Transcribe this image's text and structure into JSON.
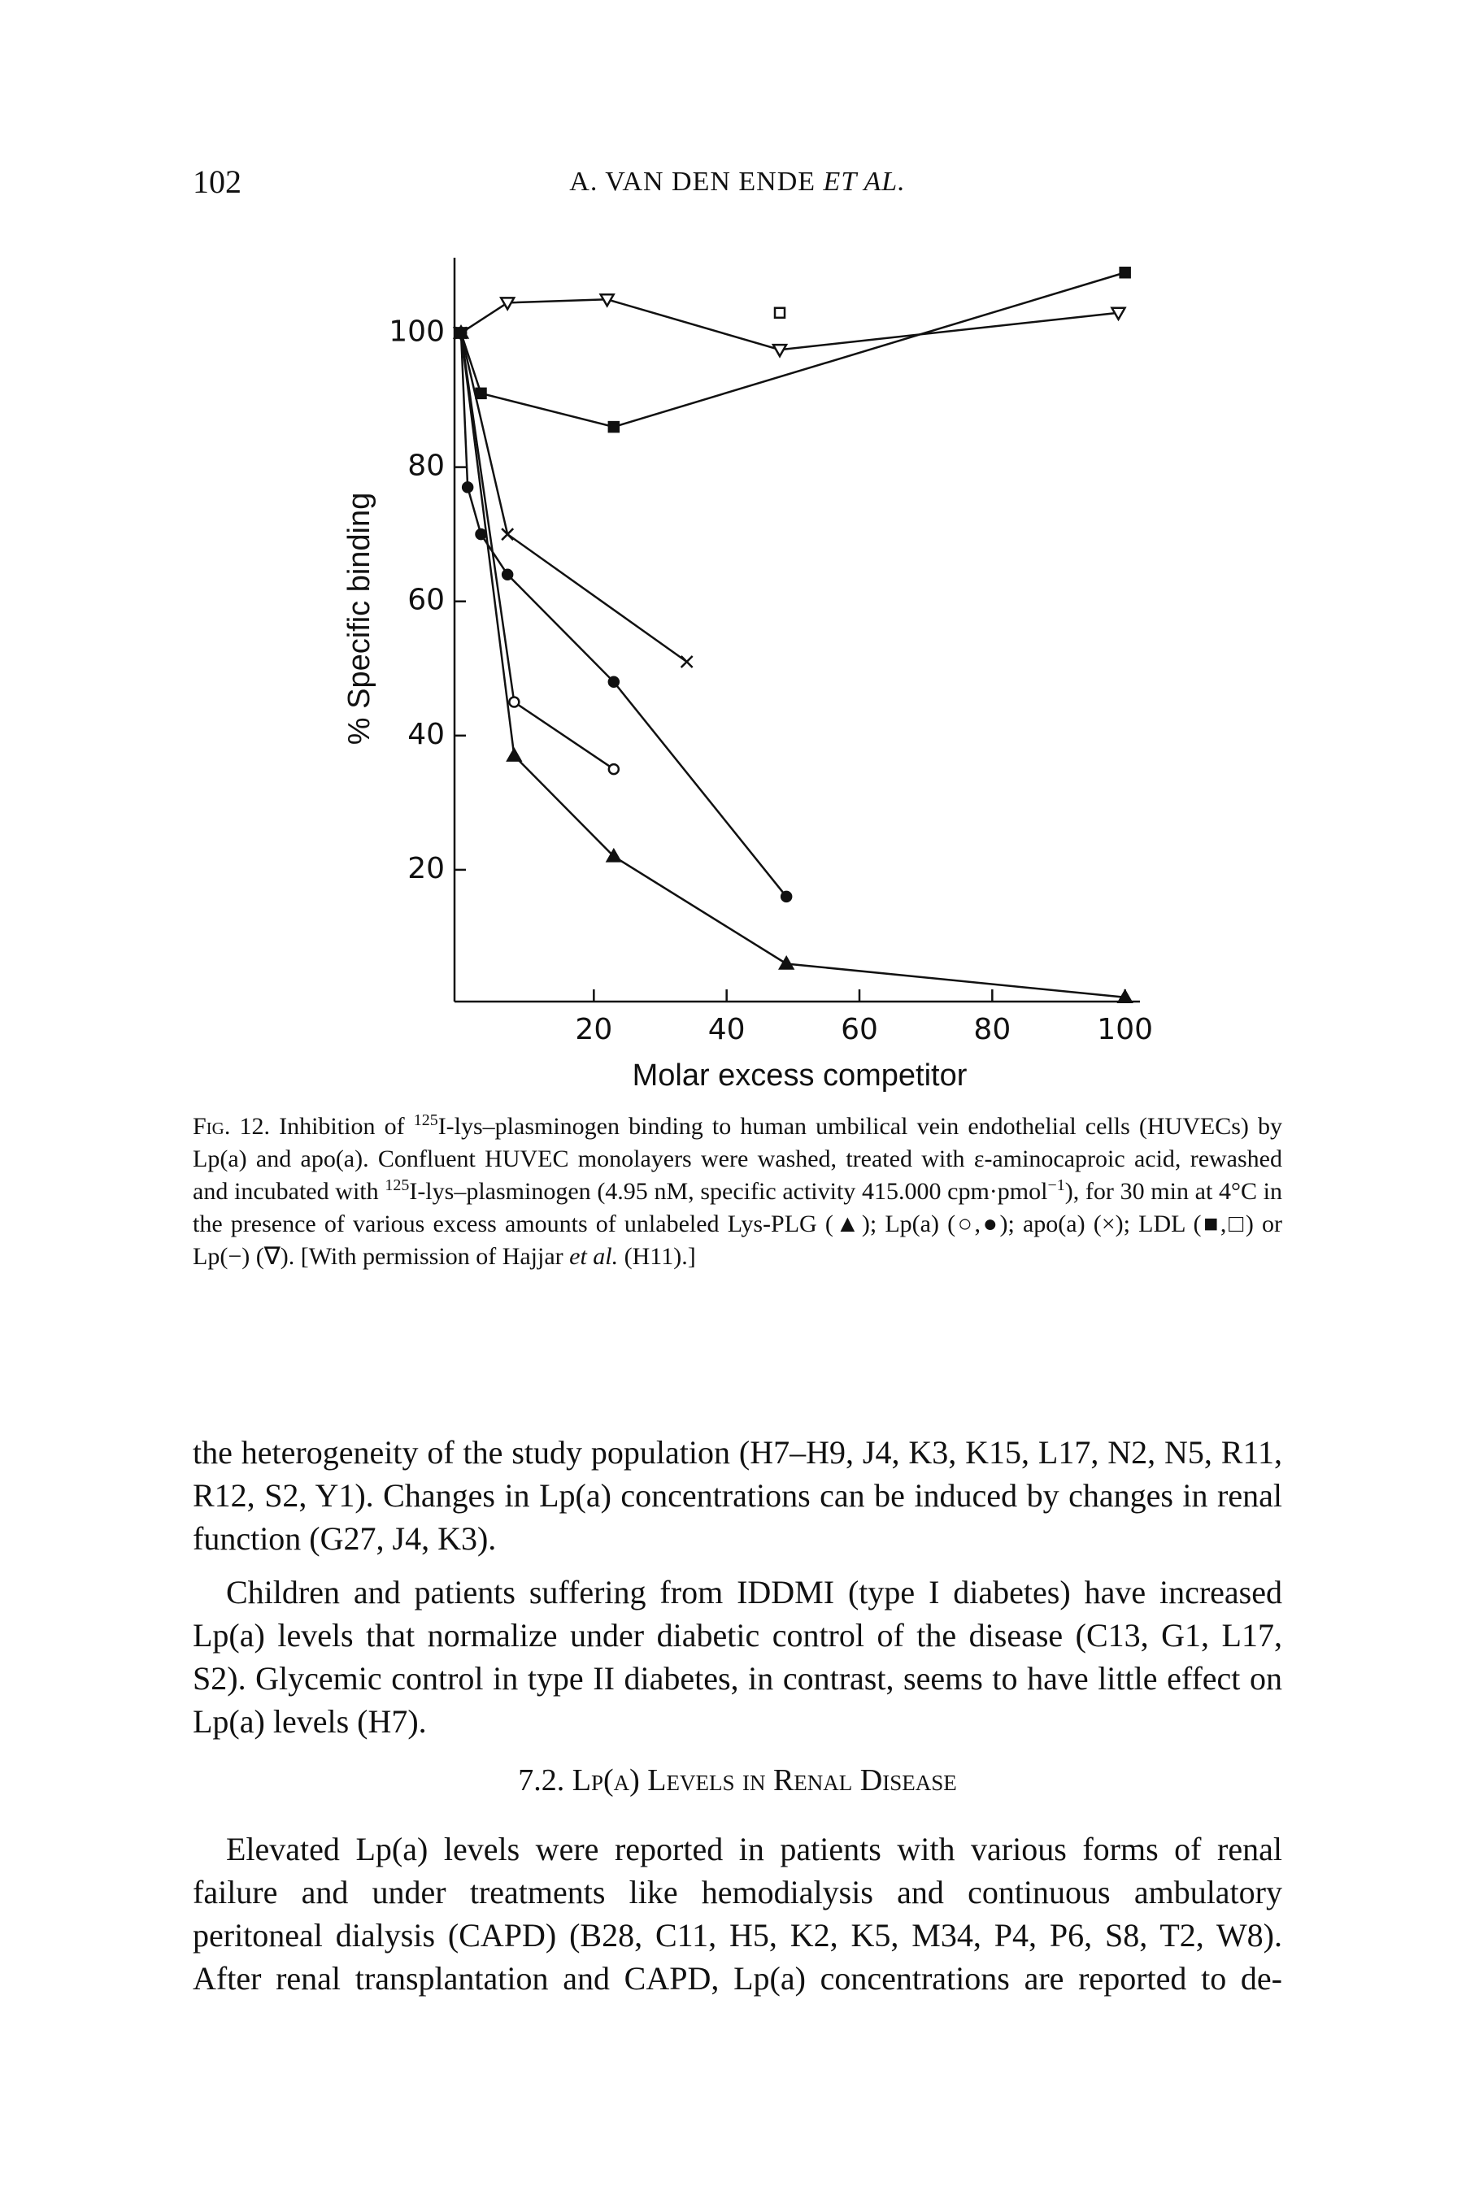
{
  "header": {
    "page_number": "102",
    "author": "A. VAN DEN ENDE",
    "author_suffix": "ET AL."
  },
  "chart_data": {
    "type": "line",
    "xlabel": "Molar excess competitor",
    "ylabel": "% Specific binding",
    "xlim": [
      0,
      102
    ],
    "ylim": [
      0,
      110
    ],
    "xticks": [
      20,
      40,
      60,
      80,
      100
    ],
    "yticks": [
      20,
      40,
      60,
      80,
      100
    ],
    "grid": false,
    "series": [
      {
        "marker": "square-filled",
        "color": "#111111",
        "x": [
          0,
          3,
          23,
          100
        ],
        "values": [
          100,
          91,
          86,
          109
        ]
      },
      {
        "marker": "triangle-open-down",
        "color": "#111111",
        "x": [
          0,
          7,
          22,
          48,
          99
        ],
        "values": [
          100,
          104.5,
          105,
          97.5,
          103
        ]
      },
      {
        "marker": "square-open",
        "color": "#111111",
        "line": false,
        "x": [
          48
        ],
        "values": [
          103
        ]
      },
      {
        "marker": "cross",
        "color": "#111111",
        "x": [
          0,
          7,
          34
        ],
        "values": [
          100,
          70,
          51
        ]
      },
      {
        "marker": "circle-filled",
        "color": "#111111",
        "x": [
          0,
          1,
          3,
          7,
          23,
          49
        ],
        "values": [
          100,
          77,
          70,
          64,
          48,
          16
        ]
      },
      {
        "marker": "circle-open",
        "color": "#111111",
        "x": [
          0,
          8,
          23
        ],
        "values": [
          100,
          45,
          35
        ]
      },
      {
        "marker": "triangle-filled",
        "color": "#111111",
        "x": [
          0,
          8,
          23,
          49,
          100
        ],
        "values": [
          100,
          37,
          22,
          6,
          1
        ]
      }
    ]
  },
  "caption": [
    {
      "text": "Fig. 12.",
      "style": "smallcaps"
    },
    {
      "text": " Inhibition of "
    },
    {
      "text": "125",
      "style": "sup"
    },
    {
      "text": "I-lys–plasminogen binding to human umbilical vein endothelial cells (HUVECs) by Lp(a) and apo(a). Confluent HUVEC monolayers were washed, treated with ε-aminocaproic acid, rewashed and incubated with "
    },
    {
      "text": "125",
      "style": "sup"
    },
    {
      "text": "I-lys–plasminogen (4.95 nM, specific activity 415.000 cpm·pmol"
    },
    {
      "text": "−1",
      "style": "sup"
    },
    {
      "text": "), for 30 min at 4°C in the presence of various excess amounts of unlabeled Lys-PLG (▲); Lp(a) (○,●); apo(a) (×); LDL (■,□) or Lp(−) (∇). [With permission of Hajjar "
    },
    {
      "text": "et al.",
      "style": "italic"
    },
    {
      "text": " (H11).]"
    }
  ],
  "paragraphs": [
    "the heterogeneity of the study population (H7–H9, J4, K3, K15, L17, N2, N5, R11, R12, S2, Y1). Changes in Lp(a) concentrations can be induced by changes in renal function (G27, J4, K3).",
    "Children and patients suffering from IDDMI (type I diabetes) have increased Lp(a) levels that normalize under diabetic control of the disease (C13, G1, L17, S2). Glycemic control in type II diabetes, in contrast, seems to have little effect on Lp(a) levels (H7)."
  ],
  "section": {
    "heading": "7.2. Lp(a) Levels in Renal Disease",
    "paragraphs": [
      "Elevated Lp(a) levels were reported in patients with various forms of renal failure and under treatments like hemodialysis and continuous ambulatory peritoneal dialysis (CAPD) (B28, C11, H5, K2, K5, M34, P4, P6, S8, T2, W8). After renal transplantation and CAPD, Lp(a) concentrations are reported to de-"
    ]
  }
}
